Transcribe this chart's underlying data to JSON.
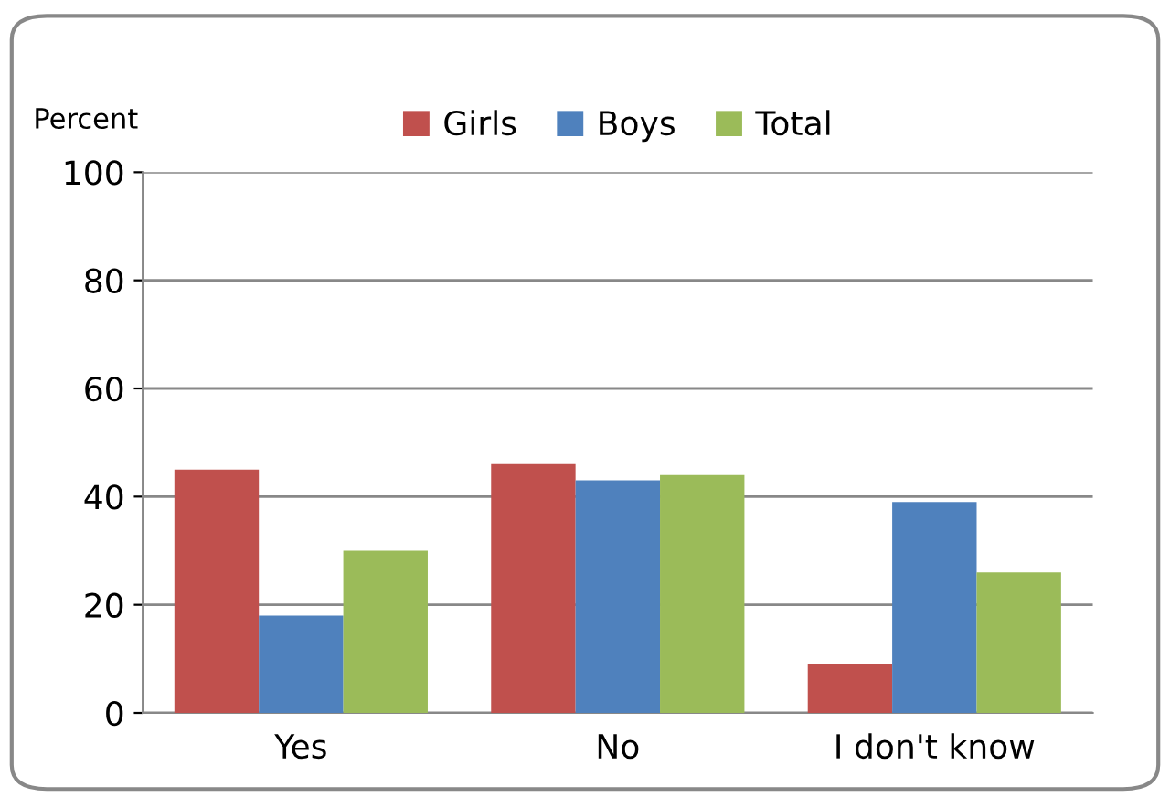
{
  "chart_data": {
    "type": "bar",
    "ylabel": "Percent",
    "categories": [
      "Yes",
      "No",
      "I don't know"
    ],
    "series": [
      {
        "name": "Girls",
        "color": "#c0504d",
        "values": [
          45,
          46,
          9
        ]
      },
      {
        "name": "Boys",
        "color": "#4f81bd",
        "values": [
          18,
          43,
          39
        ]
      },
      {
        "name": "Total",
        "color": "#9bbb59",
        "values": [
          30,
          44,
          26
        ]
      }
    ],
    "ylim": [
      0,
      100
    ],
    "yticks": [
      0,
      20,
      40,
      60,
      80,
      100
    ],
    "grid": "y",
    "legend": "top"
  }
}
